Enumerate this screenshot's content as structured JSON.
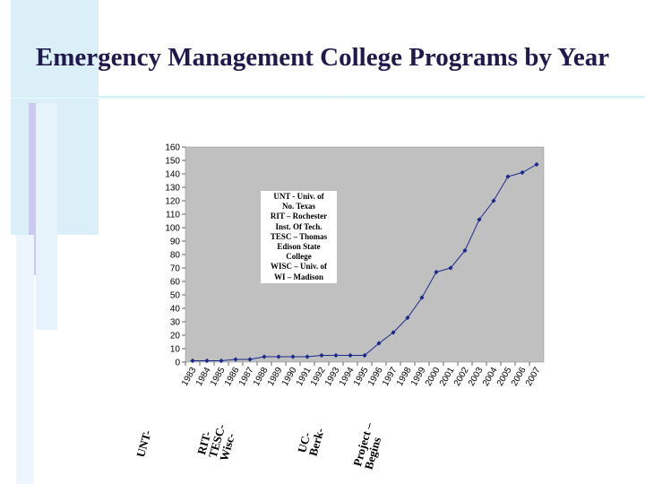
{
  "page": {
    "title": "Emergency Management College Programs by Year"
  },
  "theme": {
    "plot_background": "#c0c0c0",
    "series_color": "#1a2a8c",
    "title_color": "#1f1a4d",
    "accent_light": "#cfe9f7",
    "accent_lavender": "#c9c4ef"
  },
  "chart_data": {
    "type": "line",
    "title": "",
    "xlabel": "",
    "ylabel": "",
    "ylim": [
      0,
      160
    ],
    "ytick_step": 10,
    "grid": false,
    "legend": "none",
    "x": [
      "1983",
      "1984",
      "1985",
      "1986",
      "1987",
      "1988",
      "1989",
      "1990",
      "1991",
      "1992",
      "1993",
      "1994",
      "1995",
      "1996",
      "1997",
      "1998",
      "1999",
      "2000",
      "2001",
      "2002",
      "2003",
      "2004",
      "2005",
      "2006",
      "2007"
    ],
    "series": [
      {
        "values": [
          1,
          1,
          1,
          2,
          2,
          4,
          4,
          4,
          4,
          5,
          5,
          5,
          5,
          14,
          22,
          33,
          48,
          67,
          70,
          83,
          106,
          120,
          138,
          141,
          147
        ]
      }
    ]
  },
  "note_lines": [
    "UNT - Univ. of",
    "No. Texas",
    "RIT – Rochester",
    "Inst. Of Tech.",
    "TESC – Thomas",
    "Edison State",
    "College",
    "WISC – Univ. of",
    "WI – Madison"
  ],
  "annotations": [
    {
      "lines": [
        "UNT-"
      ]
    },
    {
      "lines": [
        "RIT-",
        "TESC-",
        "Wisc-"
      ]
    },
    {
      "lines": [
        "UC-",
        "Berk-"
      ]
    },
    {
      "lines": [
        "Project –",
        "Begins"
      ]
    }
  ]
}
